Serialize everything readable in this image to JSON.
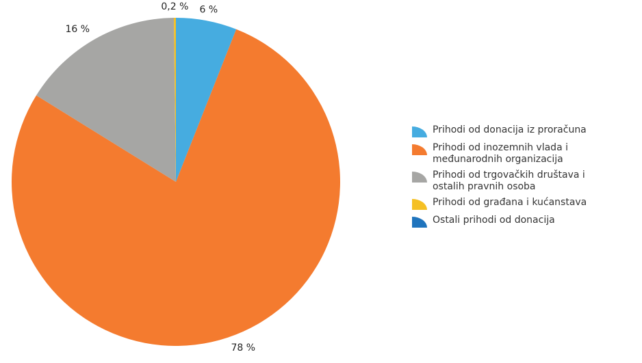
{
  "chart_data": {
    "type": "pie",
    "series": [
      {
        "name": "Prihodi od donacija iz proračuna",
        "color": "#46ace0",
        "values": [
          6
        ],
        "value_labels": [
          "6 %"
        ]
      },
      {
        "name": "Prihodi od inozemnih vlada i međunarodnih organizacija",
        "color": "#f47b2f",
        "values": [
          78
        ],
        "value_labels": [
          "78 %"
        ]
      },
      {
        "name": "Prihodi od trgovačkih društava i ostalih pravnih osoba",
        "color": "#a6a6a4",
        "values": [
          16
        ],
        "value_labels": [
          "16 %"
        ]
      },
      {
        "name": "Prihodi od građana i kućanstava",
        "color": "#f5c024",
        "values": [
          0.2
        ],
        "value_labels": [
          "0,2 %"
        ]
      },
      {
        "name": "Ostali prihodi od donacija",
        "color": "#1f74bd",
        "values": [
          0
        ]
      }
    ],
    "legend": "right"
  }
}
